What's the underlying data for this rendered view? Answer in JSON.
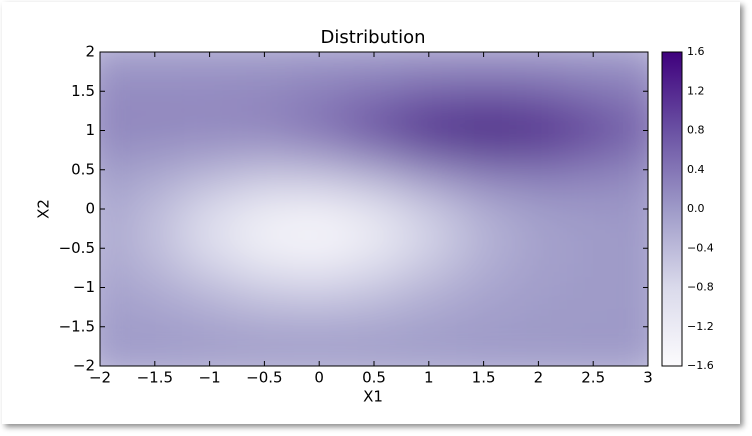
{
  "chart_data": {
    "type": "heatmap",
    "title": "Distribution",
    "xlabel": "X1",
    "ylabel": "X2",
    "colormap": [
      "#fcfbfd",
      "#dadaeb",
      "#9e9ac8",
      "#6a51a3",
      "#3f007d"
    ],
    "x": [
      -2,
      -1.5,
      -1,
      -0.5,
      0,
      0.5,
      1,
      1.5,
      2,
      2.5,
      3
    ],
    "y": [
      -2,
      -1.5,
      -1,
      -0.5,
      0,
      0.5,
      1,
      1.5,
      2
    ],
    "z": [
      [
        0,
        0,
        -0.01,
        -0.01,
        -0.01,
        -0.01,
        -0.01,
        0,
        0,
        0,
        0
      ],
      [
        -0.02,
        -0.04,
        -0.09,
        -0.14,
        -0.15,
        -0.12,
        -0.07,
        -0.03,
        -0.01,
        0,
        0
      ],
      [
        -0.08,
        -0.21,
        -0.43,
        -0.64,
        -0.7,
        -0.56,
        -0.33,
        -0.15,
        -0.05,
        -0.01,
        0
      ],
      [
        -0.17,
        -0.45,
        -0.92,
        -1.37,
        -1.49,
        -1.2,
        -0.71,
        -0.32,
        -0.1,
        -0.02,
        0
      ],
      [
        -0.15,
        -0.41,
        -0.84,
        -1.25,
        -1.36,
        -1.08,
        -0.64,
        -0.27,
        -0.07,
        0,
        0.02
      ],
      [
        -0.01,
        -0.12,
        -0.28,
        -0.42,
        -0.37,
        -0.13,
        0.22,
        0.43,
        0.44,
        0.31,
        0.18
      ],
      [
        0.24,
        0.23,
        0.22,
        0.28,
        0.5,
        0.93,
        1.4,
        1.58,
        1.44,
        1.01,
        0.6
      ],
      [
        0.15,
        0.15,
        0.16,
        0.19,
        0.28,
        0.42,
        0.58,
        0.65,
        0.58,
        0.42,
        0.28
      ],
      [
        0,
        0,
        0,
        0,
        0.01,
        0.01,
        0.02,
        0.02,
        0.02,
        0.01,
        0.01
      ]
    ],
    "xlim": [
      -2,
      3
    ],
    "ylim": [
      -2,
      2
    ],
    "xticks": [
      {
        "value": -2,
        "label": "−2"
      },
      {
        "value": -1.5,
        "label": "−1.5"
      },
      {
        "value": -1,
        "label": "−1"
      },
      {
        "value": -0.5,
        "label": "−0.5"
      },
      0,
      0.5,
      1,
      1.5,
      2,
      2.5,
      3
    ],
    "yticks": [
      {
        "value": -2,
        "label": "−2"
      },
      {
        "value": -1.5,
        "label": "−1.5"
      },
      {
        "value": -1,
        "label": "−1"
      },
      {
        "value": -0.5,
        "label": "−0.5"
      },
      0,
      0.5,
      1,
      1.5,
      2
    ],
    "colorbar": {
      "lim": [
        -1.6,
        1.6
      ],
      "ticks": [
        {
          "value": -1.6,
          "label": "−1.6"
        },
        {
          "value": -1.2,
          "label": "−1.2"
        },
        {
          "value": -0.8,
          "label": "−0.8"
        },
        {
          "value": -0.4,
          "label": "−0.4"
        },
        {
          "value": 0,
          "label": "0.0"
        },
        0.4,
        0.8,
        1.2,
        1.6
      ]
    }
  }
}
